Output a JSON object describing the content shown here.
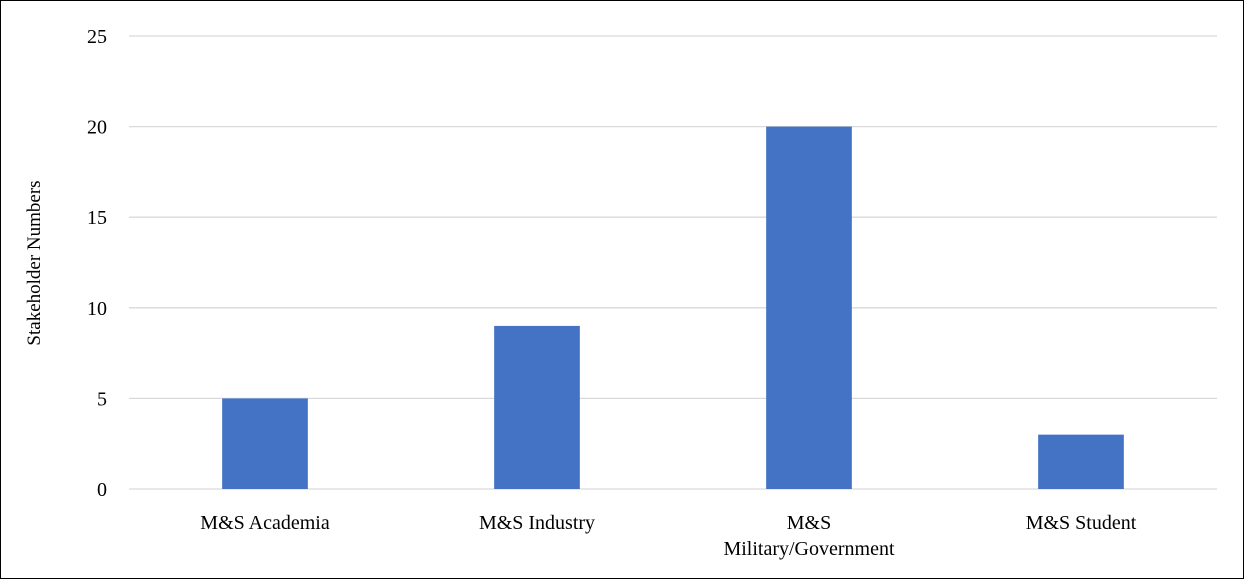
{
  "chart_data": {
    "type": "bar",
    "title": "",
    "xlabel": "",
    "ylabel": "Stakeholder Numbers",
    "categories": [
      [
        "M&S Academia"
      ],
      [
        "M&S Industry"
      ],
      [
        "M&S",
        "Military/Government"
      ],
      [
        "M&S Student"
      ]
    ],
    "values": [
      5,
      9,
      20,
      3
    ],
    "ylim": [
      0,
      25
    ],
    "yticks": [
      0,
      5,
      10,
      15,
      20,
      25
    ],
    "grid": true,
    "legend": "none",
    "colors": {
      "bar": "#4472C4",
      "grid": "#D9D9D9",
      "axis": "#D9D9D9",
      "text": "#000000"
    }
  }
}
